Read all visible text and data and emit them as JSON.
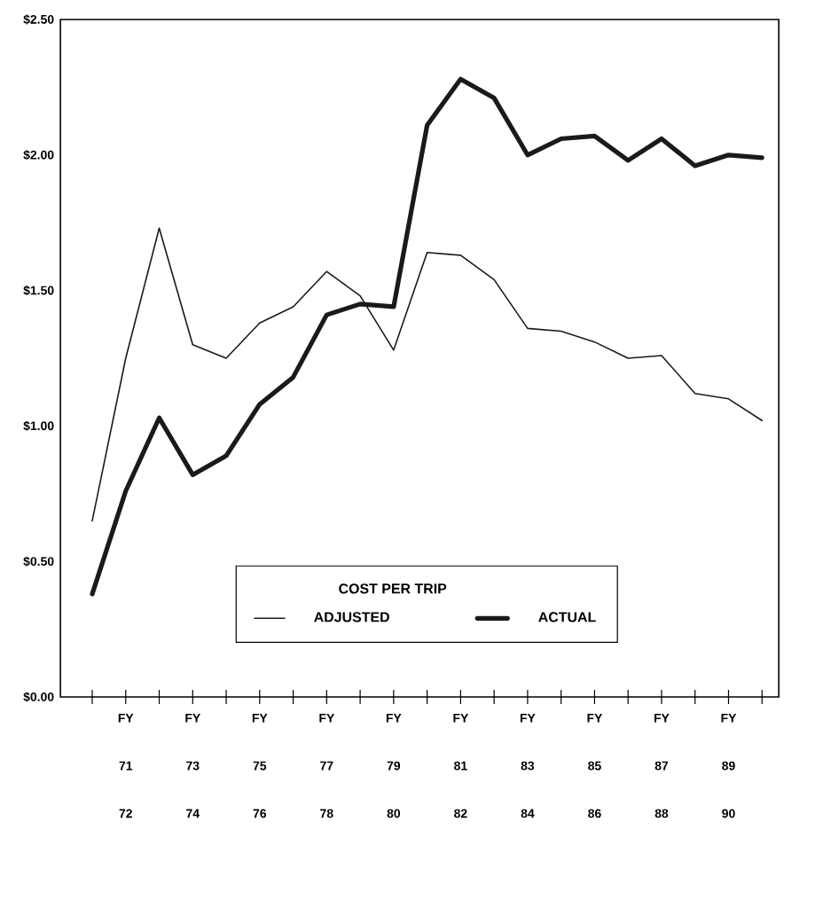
{
  "chart_data": {
    "type": "line",
    "legend_title": "COST PER TRIP",
    "legend": "bottom",
    "categories": [
      null,
      "FY 71 72",
      null,
      "FY 73 74",
      null,
      "FY 75 76",
      null,
      "FY 77 78",
      null,
      "FY 79 80",
      null,
      "FY 81 82",
      null,
      "FY 83 84",
      null,
      "FY 85 86",
      null,
      "FY 87 88",
      null,
      "FY 89 90",
      null
    ],
    "series": [
      {
        "name": "ADJUSTED",
        "color": "#1a1a1a",
        "values": [
          0.65,
          1.25,
          1.73,
          1.3,
          1.25,
          1.38,
          1.44,
          1.57,
          1.48,
          1.28,
          1.64,
          1.63,
          1.54,
          1.36,
          1.35,
          1.31,
          1.25,
          1.26,
          1.12,
          1.1,
          1.02
        ]
      },
      {
        "name": "ACTUAL",
        "color": "#1a1a1a",
        "values": [
          0.38,
          0.76,
          1.03,
          0.82,
          0.89,
          1.08,
          1.18,
          1.41,
          1.45,
          1.44,
          2.11,
          2.28,
          2.21,
          2.0,
          2.06,
          2.07,
          1.98,
          2.06,
          1.96,
          2.0,
          1.99
        ]
      }
    ],
    "ylim": [
      0,
      2.5
    ],
    "yticks": [
      {
        "value": 0,
        "label": "$0.00"
      },
      {
        "value": 0.5,
        "label": "$0.50"
      },
      {
        "value": 1,
        "label": "$1.00"
      },
      {
        "value": 1.5,
        "label": "$1.50"
      },
      {
        "value": 2,
        "label": "$2.00"
      },
      {
        "value": 2.5,
        "label": "$2.50"
      }
    ],
    "grid": false,
    "marker": "none",
    "line_style": "solid"
  }
}
